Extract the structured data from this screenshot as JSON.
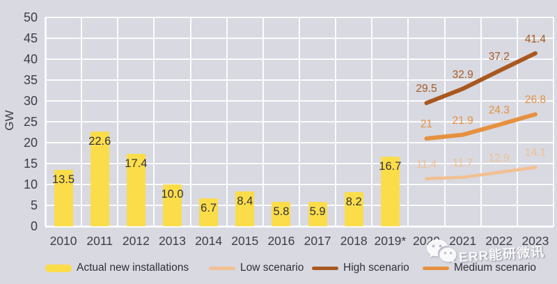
{
  "chart_data": {
    "type": "bar",
    "title": "",
    "ylabel": "GW",
    "ylim": [
      0,
      50
    ],
    "ytick_step": 5,
    "yticks": [
      0,
      5,
      10,
      15,
      20,
      25,
      30,
      35,
      40,
      45,
      50
    ],
    "grid": true,
    "legend_position": "bottom",
    "categories": [
      "2010",
      "2011",
      "2012",
      "2013",
      "2014",
      "2015",
      "2016",
      "2017",
      "2018",
      "2019*",
      "2020",
      "2021",
      "2022",
      "2023"
    ],
    "bar_series": {
      "name": "Actual new installations",
      "color": "#fbdd4a",
      "values": [
        13.5,
        22.6,
        17.4,
        10.0,
        6.7,
        8.4,
        5.8,
        5.9,
        8.2,
        16.7,
        null,
        null,
        null,
        null
      ],
      "value_labels": [
        "13.5",
        "22.6",
        "17.4",
        "10.0",
        "6.7",
        "8.4",
        "5.8",
        "5.9",
        "8.2",
        "16.7"
      ]
    },
    "line_series": [
      {
        "name": "Low scenario",
        "color": "#f2c091",
        "stroke_width": 4.5,
        "categories": [
          "2020",
          "2021",
          "2022",
          "2023"
        ],
        "values": [
          11.4,
          11.7,
          12.9,
          14.1
        ],
        "value_labels": [
          "11.4",
          "11.7",
          "12.9",
          "14.1"
        ]
      },
      {
        "name": "Medium scenario",
        "color": "#e6913f",
        "stroke_width": 6,
        "categories": [
          "2020",
          "2021",
          "2022",
          "2023"
        ],
        "values": [
          21,
          21.9,
          24.3,
          26.8
        ],
        "value_labels": [
          "21",
          "21.9",
          "24.3",
          "26.8"
        ]
      },
      {
        "name": "High scenario",
        "color": "#a9581f",
        "stroke_width": 6,
        "categories": [
          "2020",
          "2021",
          "2022",
          "2023"
        ],
        "values": [
          29.5,
          32.9,
          37.2,
          41.4
        ],
        "value_labels": [
          "29.5",
          "32.9",
          "37.2",
          "41.4"
        ]
      }
    ]
  },
  "legend": [
    {
      "label": "Actual new installations",
      "swatch": "bar",
      "color": "#fbdd4a"
    },
    {
      "label": "Low scenario",
      "swatch": "line",
      "color": "#f2c091"
    },
    {
      "label": "High scenario",
      "swatch": "line",
      "color": "#a9581f"
    },
    {
      "label": "Medium scenario",
      "swatch": "line",
      "color": "#e6913f"
    }
  ],
  "watermark": {
    "text": "ERR能研微讯",
    "icon": "wechat-icon"
  }
}
